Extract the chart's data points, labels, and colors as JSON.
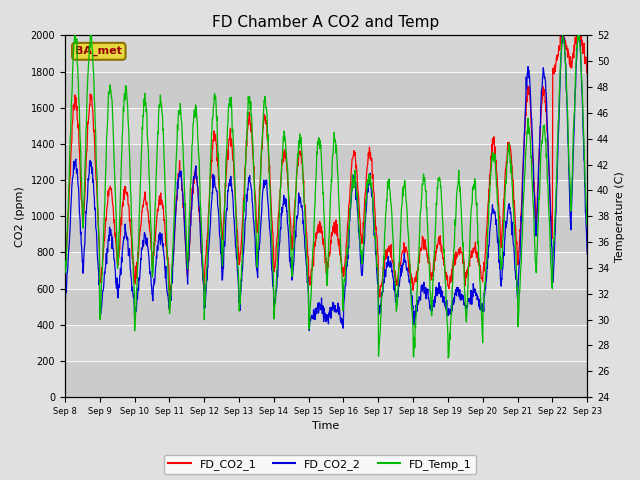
{
  "title": "FD Chamber A CO2 and Temp",
  "xlabel": "Time",
  "ylabel_left": "CO2 (ppm)",
  "ylabel_right": "Temperature (C)",
  "ylim_left": [
    0,
    2000
  ],
  "ylim_right": [
    24,
    52
  ],
  "yticks_left": [
    0,
    200,
    400,
    600,
    800,
    1000,
    1200,
    1400,
    1600,
    1800,
    2000
  ],
  "yticks_right": [
    24,
    26,
    28,
    30,
    32,
    34,
    36,
    38,
    40,
    42,
    44,
    46,
    48,
    50,
    52
  ],
  "xtick_labels": [
    "Sep 8",
    "Sep 9",
    "Sep 10",
    "Sep 11",
    "Sep 12",
    "Sep 13",
    "Sep 14",
    "Sep 15",
    "Sep 16",
    "Sep 17",
    "Sep 18",
    "Sep 19",
    "Sep 20",
    "Sep 21",
    "Sep 22",
    "Sep 23"
  ],
  "colors": {
    "FD_CO2_1": "#ff0000",
    "FD_CO2_2": "#0000dd",
    "FD_Temp_1": "#00bb00"
  },
  "legend_labels": [
    "FD_CO2_1",
    "FD_CO2_2",
    "FD_Temp_1"
  ],
  "annotation_text": "BA_met",
  "bg_color": "#e0e0e0",
  "plot_bg_color": "#d0d0d0",
  "title_fontsize": 11,
  "label_fontsize": 8,
  "tick_fontsize": 7,
  "legend_fontsize": 8,
  "n_days": 15,
  "pts_per_day": 96,
  "co2_1_peaks": [
    1650,
    1150,
    1100,
    1250,
    1450,
    1550,
    1350,
    950,
    1350,
    820,
    850,
    820,
    1400,
    1700,
    2000
  ],
  "co2_1_mins": [
    580,
    530,
    575,
    395,
    570,
    580,
    575,
    580,
    580,
    530,
    570,
    580,
    570,
    590,
    1750
  ],
  "co2_2_peaks": [
    1300,
    900,
    900,
    1250,
    1200,
    1200,
    1100,
    500,
    1200,
    750,
    600,
    580,
    1050,
    1800,
    2000
  ],
  "co2_2_mins": [
    400,
    380,
    370,
    375,
    395,
    395,
    395,
    395,
    395,
    430,
    415,
    435,
    405,
    420,
    400
  ],
  "temp_peaks_c": [
    52,
    48,
    47,
    46.5,
    47,
    47,
    44,
    44,
    41,
    40.5,
    41,
    40.5,
    43,
    45,
    52
  ],
  "temp_mins_c": [
    30,
    27,
    26.5,
    28,
    28,
    28,
    28,
    27,
    31,
    25.5,
    25,
    24.5,
    29,
    28,
    32
  ]
}
